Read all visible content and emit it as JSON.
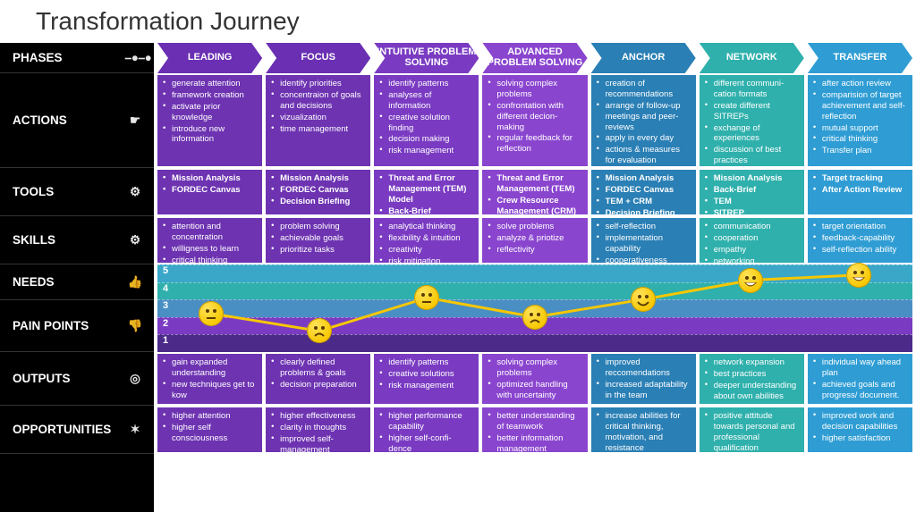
{
  "title": "Transformation Journey",
  "rowLabels": [
    {
      "key": "phases",
      "label": "PHASES",
      "icon": "⎯●⎯●"
    },
    {
      "key": "actions",
      "label": "ACTIONS",
      "icon": "☛"
    },
    {
      "key": "tools",
      "label": "TOOLS",
      "icon": "⚙"
    },
    {
      "key": "skills",
      "label": "SKILLS",
      "icon": "⚙"
    },
    {
      "key": "needs",
      "label": "NEEDS",
      "icon": "👍"
    },
    {
      "key": "pain",
      "label": "PAIN POINTS",
      "icon": "👎"
    },
    {
      "key": "outputs",
      "label": "OUTPUTS",
      "icon": "◎"
    },
    {
      "key": "opps",
      "label": "OPPORTUNITIES",
      "icon": "✶"
    }
  ],
  "phases": [
    {
      "label": "LEADING",
      "color": "#6a2fb3"
    },
    {
      "label": "FOCUS",
      "color": "#6a2fb3"
    },
    {
      "label": "INTUITIVE PROBLEM SOLVING",
      "color": "#7a3bc2"
    },
    {
      "label": "ADVANCED PROBLEM SOLVING",
      "color": "#8a45cf"
    },
    {
      "label": "ANCHOR",
      "color": "#2a7fb5"
    },
    {
      "label": "NETWORK",
      "color": "#2fb0ac"
    },
    {
      "label": "TRANSFER",
      "color": "#2f9dd4"
    }
  ],
  "cellColors": [
    "#6d33b1",
    "#6d33b1",
    "#7a3bc2",
    "#8a45cf",
    "#2a7fb5",
    "#2fb0ac",
    "#2f9dd4"
  ],
  "actions": [
    [
      "generate attention",
      "framework creation",
      "activate prior knowledge",
      "introduce new information"
    ],
    [
      "identify priorities",
      "concentraion of goals and decisions",
      "vizualization",
      "time management"
    ],
    [
      "identify patterns",
      "analyses of information",
      "creative solution finding",
      "decision making",
      "risk management"
    ],
    [
      "solving complex problems",
      "confrontation with different decion-making",
      "regular feedback for reflection"
    ],
    [
      "creation of recommendations",
      "arrange of follow-up meetings and peer-reviews",
      "apply in every day",
      "actions & measures for evaluation"
    ],
    [
      "different communi-cation formats",
      "create different SITREPs",
      "exchange of experiences",
      "discussion of best practices"
    ],
    [
      "after action review",
      "comparision of target achievement and self-reflection",
      "mutual support",
      "critical thinking",
      "Transfer plan"
    ]
  ],
  "tools": [
    [
      "Mission Analysis",
      "FORDEC Canvas"
    ],
    [
      "Mission Analysis",
      "FORDEC Canvas",
      "Decision Briefing"
    ],
    [
      "Threat and Error Management (TEM) Model",
      "Back-Brief"
    ],
    [
      "Threat and Error Management (TEM)",
      "Crew Resource Management (CRM)"
    ],
    [
      "Mission Analysis",
      "FORDEC Canvas",
      "TEM + CRM",
      "Decision Briefing"
    ],
    [
      "Mission Analysis",
      "Back-Brief",
      "TEM",
      "SITREP"
    ],
    [
      "Target tracking",
      "After Action Review"
    ]
  ],
  "skills": [
    [
      "attention and concentration",
      "willigness to learn",
      "critical thinking"
    ],
    [
      "problem solving",
      "achievable goals",
      "prioritize tasks"
    ],
    [
      "analytical thinking",
      "flexibility & intuition",
      "creativity",
      "risk mitigation"
    ],
    [
      "solve problems",
      "analyze & priotize",
      "reflectivity"
    ],
    [
      "self-reflection",
      "implementation capability",
      "cooperativeness"
    ],
    [
      "communication",
      "cooperation",
      "empathy",
      "networking"
    ],
    [
      "target orientation",
      "feedback-capability",
      "self-reflection ability"
    ]
  ],
  "outputs": [
    [
      "gain expanded understanding",
      "new techniques get to kow"
    ],
    [
      "clearly defined problems & goals",
      "decision preparation"
    ],
    [
      "identify patterns",
      "creative solutions",
      "risk management"
    ],
    [
      "solving complex problems",
      "optimized handling with uncertainty"
    ],
    [
      "improved reccomendations",
      "increased adaptability in the team"
    ],
    [
      "network expansion",
      "best practices",
      "deeper understanding about own abilities"
    ],
    [
      "individual way ahead plan",
      "achieved goals and progress/ document."
    ]
  ],
  "opps": [
    [
      "higher attention",
      "higher self consciousness"
    ],
    [
      "higher effectiveness",
      "clarity in thoughts",
      "improved self-management"
    ],
    [
      "higher performance capability",
      "higher self-confi-dence"
    ],
    [
      "better understanding of teamwork",
      "better information management"
    ],
    [
      "increase abilities for critical thinking, motivation, and resistance"
    ],
    [
      "positive attitude towards personal and professional qualification"
    ],
    [
      "improved work and decision capabilities",
      "higher satisfaction"
    ]
  ],
  "chart": {
    "bands": [
      {
        "n": 5,
        "color": "#3aa7c9"
      },
      {
        "n": 4,
        "color": "#2fb0ac"
      },
      {
        "n": 3,
        "color": "#4a8fc4"
      },
      {
        "n": 2,
        "color": "#7a3bc2"
      },
      {
        "n": 1,
        "color": "#4b2a8a"
      }
    ],
    "values": [
      2.7,
      1.7,
      3.6,
      2.5,
      3.5,
      4.6,
      4.9
    ],
    "moods": [
      "neutral",
      "sad",
      "neutral",
      "sad",
      "happy",
      "grin",
      "grin"
    ],
    "lineColor": "#f7c700"
  }
}
